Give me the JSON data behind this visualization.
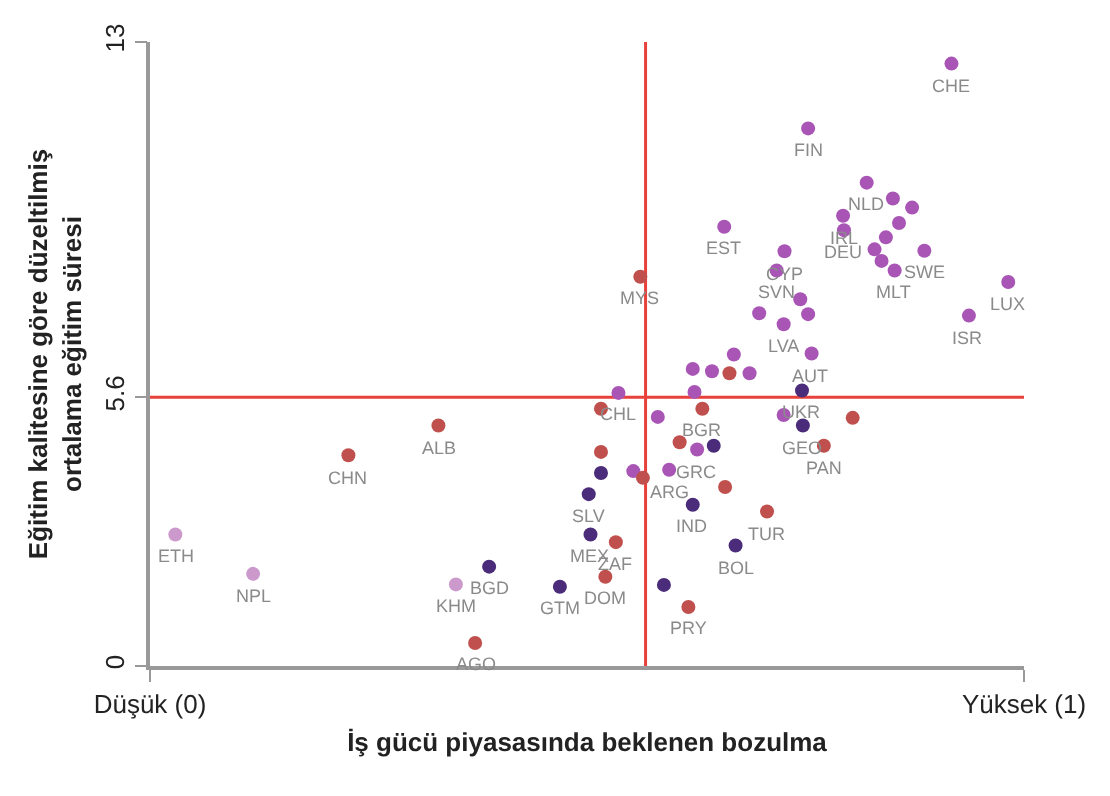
{
  "chart_data": {
    "type": "scatter",
    "xlabel": "İş gücü piyasasında beklenen bozulma",
    "ylabel": "Eğitim kalitesine göre düzeltilmiş\nortalama eğitim süresi",
    "xlim": [
      0,
      1
    ],
    "xticks": [
      {
        "value": 0,
        "label": "Düşük (0)"
      },
      {
        "value": 1,
        "label": "Yüksek (1)"
      }
    ],
    "ylim": [
      0,
      13
    ],
    "yticks": [
      0,
      5.6,
      13
    ],
    "grid": false,
    "marker": "circle",
    "tick_labels": "xy",
    "x": [
      0.917,
      0.753,
      0.82,
      0.85,
      0.872,
      0.793,
      0.794,
      0.857,
      0.842,
      0.886,
      0.829,
      0.837,
      0.852,
      0.657,
      0.726,
      0.717,
      0.561,
      0.982,
      0.937,
      0.744,
      0.753,
      0.697,
      0.725,
      0.757,
      0.668,
      0.621,
      0.643,
      0.663,
      0.686,
      0.623,
      0.746,
      0.536,
      0.632,
      0.581,
      0.516,
      0.725,
      0.747,
      0.804,
      0.771,
      0.606,
      0.645,
      0.626,
      0.594,
      0.516,
      0.553,
      0.564,
      0.658,
      0.621,
      0.706,
      0.67,
      0.533,
      0.521,
      0.588,
      0.616,
      0.33,
      0.227,
      0.516,
      0.502,
      0.504,
      0.029,
      0.118,
      0.388,
      0.35,
      0.469,
      0.372
    ],
    "values": [
      12.55,
      11.2,
      10.07,
      9.74,
      9.55,
      9.38,
      9.08,
      9.23,
      8.93,
      8.65,
      8.68,
      8.44,
      8.24,
      9.15,
      8.64,
      8.24,
      8.11,
      8.0,
      7.3,
      7.64,
      7.33,
      7.35,
      7.12,
      6.51,
      6.49,
      6.19,
      6.14,
      6.1,
      6.1,
      5.71,
      5.74,
      5.69,
      5.36,
      5.19,
      5.36,
      5.23,
      5.01,
      5.17,
      4.59,
      4.66,
      4.59,
      4.51,
      4.09,
      4.46,
      4.06,
      3.92,
      3.73,
      3.36,
      3.22,
      2.51,
      2.58,
      1.86,
      1.69,
      1.23,
      5.01,
      4.39,
      4.02,
      3.58,
      2.74,
      2.74,
      1.92,
      2.07,
      1.7,
      1.65,
      0.48
    ],
    "colors": [
      "#a855b5",
      "#a855b5",
      "#a855b5",
      "#a855b5",
      "#a855b5",
      "#a855b5",
      "#a855b5",
      "#a855b5",
      "#a855b5",
      "#a855b5",
      "#a855b5",
      "#a855b5",
      "#a855b5",
      "#a855b5",
      "#a855b5",
      "#a855b5",
      "#c0504d",
      "#a855b5",
      "#a855b5",
      "#a855b5",
      "#a855b5",
      "#a855b5",
      "#a855b5",
      "#a855b5",
      "#a855b5",
      "#a855b5",
      "#a855b5",
      "#c0504d",
      "#a855b5",
      "#a855b5",
      "#4b2c7a",
      "#a855b5",
      "#c0504d",
      "#a855b5",
      "#c0504d",
      "#a855b5",
      "#4b2c7a",
      "#c0504d",
      "#c0504d",
      "#c0504d",
      "#4b2c7a",
      "#a855b5",
      "#a855b5",
      "#c0504d",
      "#a855b5",
      "#c0504d",
      "#c0504d",
      "#4b2c7a",
      "#c0504d",
      "#4b2c7a",
      "#c0504d",
      "#c0504d",
      "#4b2c7a",
      "#c0504d",
      "#c0504d",
      "#c0504d",
      "#4b2c7a",
      "#4b2c7a",
      "#4b2c7a",
      "#cc99cc",
      "#cc99cc",
      "#4b2c7a",
      "#cc99cc",
      "#4b2c7a",
      "#c0504d"
    ],
    "ref_lines": [
      {
        "axis": "y",
        "value": 5.6,
        "color": "#e8413c"
      },
      {
        "axis": "x",
        "value": 0.567,
        "color": "#e8413c"
      }
    ],
    "annotations": [
      {
        "text": "CHE",
        "x": 0.917,
        "y": 12.55
      },
      {
        "text": "FIN",
        "x": 0.753,
        "y": 11.2
      },
      {
        "text": "NLD",
        "x": 0.82,
        "y": 10.07
      },
      {
        "text": "IRL",
        "x": 0.793,
        "y": 9.38
      },
      {
        "text": "DEU",
        "x": 0.794,
        "y": 9.08
      },
      {
        "text": "EST",
        "x": 0.657,
        "y": 9.15
      },
      {
        "text": "CYP",
        "x": 0.726,
        "y": 8.64
      },
      {
        "text": "SVN",
        "x": 0.717,
        "y": 8.24
      },
      {
        "text": "MYS",
        "x": 0.561,
        "y": 8.11
      },
      {
        "text": "LUX",
        "x": 0.982,
        "y": 8.0
      },
      {
        "text": "ISR",
        "x": 0.937,
        "y": 7.3
      },
      {
        "text": "SWE",
        "x": 0.886,
        "y": 8.65
      },
      {
        "text": "MLT",
        "x": 0.852,
        "y": 8.24
      },
      {
        "text": "LVA",
        "x": 0.725,
        "y": 7.12
      },
      {
        "text": "AUT",
        "x": 0.757,
        "y": 6.51
      },
      {
        "text": "UKR",
        "x": 0.746,
        "y": 5.74
      },
      {
        "text": "CHL",
        "x": 0.536,
        "y": 5.69
      },
      {
        "text": "BGR",
        "x": 0.632,
        "y": 5.36
      },
      {
        "text": "GEO",
        "x": 0.747,
        "y": 5.01
      },
      {
        "text": "PAN",
        "x": 0.771,
        "y": 4.59
      },
      {
        "text": "GRC",
        "x": 0.626,
        "y": 4.51
      },
      {
        "text": "ARG",
        "x": 0.594,
        "y": 4.09
      },
      {
        "text": "IND",
        "x": 0.621,
        "y": 3.36
      },
      {
        "text": "TUR",
        "x": 0.706,
        "y": 3.22
      },
      {
        "text": "BOL",
        "x": 0.67,
        "y": 2.51
      },
      {
        "text": "ZAF",
        "x": 0.533,
        "y": 2.58
      },
      {
        "text": "DOM",
        "x": 0.521,
        "y": 1.86
      },
      {
        "text": "PRY",
        "x": 0.616,
        "y": 1.23
      },
      {
        "text": "ALB",
        "x": 0.33,
        "y": 5.01
      },
      {
        "text": "CHN",
        "x": 0.227,
        "y": 4.39
      },
      {
        "text": "SLV",
        "x": 0.502,
        "y": 3.58
      },
      {
        "text": "MEX",
        "x": 0.504,
        "y": 2.74
      },
      {
        "text": "ETH",
        "x": 0.029,
        "y": 2.74
      },
      {
        "text": "NPL",
        "x": 0.118,
        "y": 1.92
      },
      {
        "text": "BGD",
        "x": 0.388,
        "y": 2.07
      },
      {
        "text": "KHM",
        "x": 0.35,
        "y": 1.7
      },
      {
        "text": "GTM",
        "x": 0.469,
        "y": 1.65
      },
      {
        "text": "AGO",
        "x": 0.372,
        "y": 0.48
      }
    ]
  }
}
